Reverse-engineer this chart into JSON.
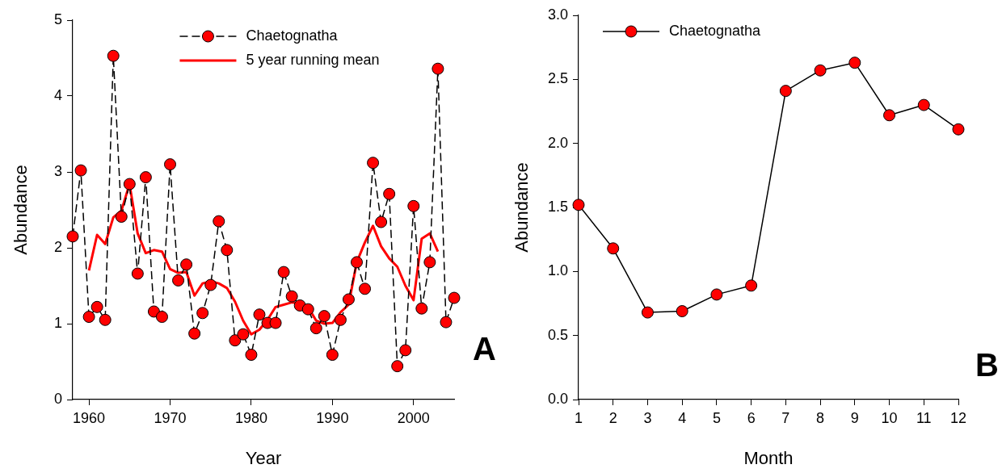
{
  "chart_data": [
    {
      "type": "line",
      "xlabel": "Year",
      "ylabel": "Abundance",
      "x": [
        1958,
        1959,
        1960,
        1961,
        1962,
        1963,
        1964,
        1965,
        1966,
        1967,
        1968,
        1969,
        1970,
        1971,
        1972,
        1973,
        1974,
        1975,
        1976,
        1977,
        1978,
        1979,
        1980,
        1981,
        1982,
        1983,
        1984,
        1985,
        1986,
        1987,
        1988,
        1989,
        1990,
        1991,
        1992,
        1993,
        1994,
        1995,
        1996,
        1997,
        1998,
        1999,
        2000,
        2001,
        2002,
        2003,
        2004,
        2005
      ],
      "xlim": [
        1958,
        2005
      ],
      "xticks": [
        1960,
        1970,
        1980,
        1990,
        2000
      ],
      "ylim": [
        0,
        5
      ],
      "yticks": [
        0,
        1,
        2,
        3,
        4,
        5
      ],
      "legend": "top",
      "annotations": [
        "A"
      ],
      "series": [
        {
          "name": "Chaetognatha",
          "color": "#ff0000",
          "marker": "circle",
          "line_style": "dashed",
          "values": [
            2.15,
            3.02,
            1.09,
            1.22,
            1.05,
            4.53,
            2.41,
            2.84,
            1.66,
            2.93,
            1.16,
            1.09,
            3.1,
            1.57,
            1.78,
            0.87,
            1.14,
            1.51,
            2.35,
            1.97,
            0.78,
            0.86,
            0.59,
            1.12,
            1.01,
            1.01,
            1.68,
            1.36,
            1.24,
            1.19,
            0.94,
            1.1,
            0.59,
            1.05,
            1.32,
            1.81,
            1.46,
            3.12,
            2.34,
            2.71,
            0.44,
            0.65,
            2.55,
            1.2,
            1.81,
            4.36,
            1.02,
            1.34
          ]
        },
        {
          "name": "5 year running mean",
          "color": "#ff0000",
          "marker": "none",
          "line_style": "solid",
          "x": [
            1960,
            1961,
            1962,
            1963,
            1964,
            1965,
            1966,
            1967,
            1968,
            1969,
            1970,
            1971,
            1972,
            1973,
            1974,
            1975,
            1976,
            1977,
            1978,
            1979,
            1980,
            1981,
            1982,
            1983,
            1984,
            1985,
            1986,
            1987,
            1988,
            1989,
            1990,
            1991,
            1992,
            1993,
            1994,
            1995,
            1996,
            1997,
            1998,
            1999,
            2000,
            2001,
            2002,
            2003
          ],
          "values": [
            1.7,
            2.17,
            2.05,
            2.4,
            2.49,
            2.84,
            2.19,
            1.93,
            1.97,
            1.95,
            1.72,
            1.67,
            1.68,
            1.37,
            1.53,
            1.56,
            1.53,
            1.47,
            1.29,
            1.04,
            0.86,
            0.92,
            1.05,
            1.22,
            1.25,
            1.28,
            1.27,
            1.22,
            1.04,
            1.0,
            1.01,
            1.15,
            1.25,
            1.81,
            2.07,
            2.29,
            2.02,
            1.86,
            1.75,
            1.5,
            1.31,
            2.12,
            2.19,
            1.95
          ]
        }
      ]
    },
    {
      "type": "line",
      "xlabel": "Month",
      "ylabel": "Abundance",
      "x": [
        1,
        2,
        3,
        4,
        5,
        6,
        7,
        8,
        9,
        10,
        11,
        12
      ],
      "xlim": [
        1,
        12
      ],
      "xticks": [
        1,
        2,
        3,
        4,
        5,
        6,
        7,
        8,
        9,
        10,
        11,
        12
      ],
      "ylim": [
        0,
        3
      ],
      "yticks": [
        {
          "value": 0,
          "label": "0.0"
        },
        {
          "value": 0.5,
          "label": "0.5"
        },
        {
          "value": 1,
          "label": "1.0"
        },
        {
          "value": 1.5,
          "label": "1.5"
        },
        {
          "value": 2,
          "label": "2.0"
        },
        {
          "value": 2.5,
          "label": "2.5"
        },
        {
          "value": 3,
          "label": "3.0"
        }
      ],
      "legend": "top left",
      "annotations": [
        "B"
      ],
      "series": [
        {
          "name": "Chaetognatha",
          "color": "#ff0000",
          "marker": "circle",
          "line_style": "solid",
          "values": [
            1.52,
            1.18,
            0.68,
            0.69,
            0.82,
            0.89,
            2.41,
            2.57,
            2.63,
            2.22,
            2.3,
            2.11
          ]
        }
      ]
    }
  ]
}
